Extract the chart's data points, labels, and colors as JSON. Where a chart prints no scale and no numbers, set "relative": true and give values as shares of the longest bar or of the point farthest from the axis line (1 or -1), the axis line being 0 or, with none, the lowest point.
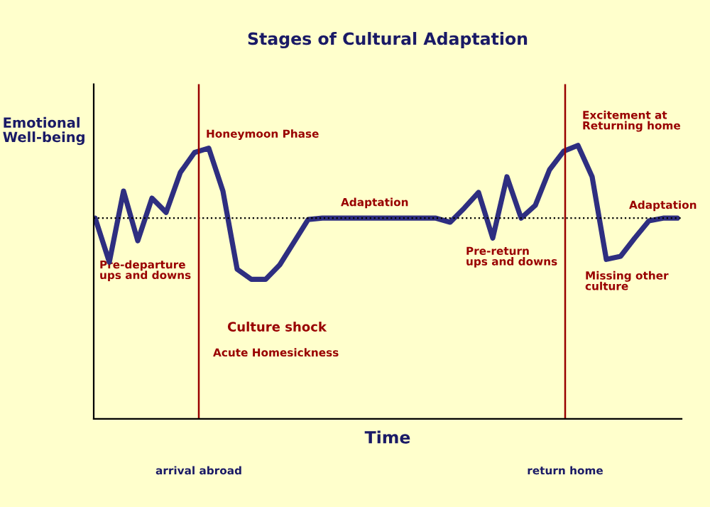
{
  "chart_data": {
    "type": "line",
    "title": "Stages of Cultural Adaptation",
    "xlabel": "Time",
    "ylabel": "Emotional\nWell-being",
    "relative": true,
    "categories": [
      null,
      null,
      null,
      null,
      null,
      null,
      null,
      null,
      null,
      null,
      null,
      null,
      null,
      null,
      null,
      null,
      null,
      null,
      null,
      null,
      null,
      null,
      null,
      null,
      null,
      null,
      null,
      null,
      null,
      null,
      null,
      null,
      null,
      null,
      null,
      null,
      null,
      null,
      null,
      null,
      null,
      null
    ],
    "series": [
      {
        "color": "#2e2e80",
        "values": [
          0.734,
          0.573,
          0.833,
          0.651,
          0.807,
          0.755,
          0.901,
          0.974,
          0.99,
          0.833,
          0.547,
          0.51,
          0.51,
          0.563,
          0.646,
          0.729,
          0.734,
          0.734,
          0.734,
          0.734,
          0.734,
          0.734,
          0.734,
          0.734,
          0.734,
          0.719,
          0.771,
          0.828,
          0.661,
          0.885,
          0.734,
          0.781,
          0.911,
          0.979,
          1.0,
          0.885,
          0.583,
          0.594,
          0.661,
          0.724,
          0.734,
          0.734
        ]
      }
    ],
    "ref_lines": [
      {
        "axis": "y",
        "value": 0.734,
        "color": "#000000",
        "line_style": "dotted"
      }
    ],
    "annotations": [
      "Honeymoon Phase",
      "Pre-departure\nups and downs",
      "Culture shock",
      "Acute Homesickness",
      "Adaptation",
      "Pre-return\nups and downs",
      "Excitement at\nReturning home",
      "Missing other\nculture",
      "Adaptation",
      "arrival abroad",
      "return home"
    ],
    "legend": false,
    "marker": "none",
    "line_style": "solid"
  }
}
